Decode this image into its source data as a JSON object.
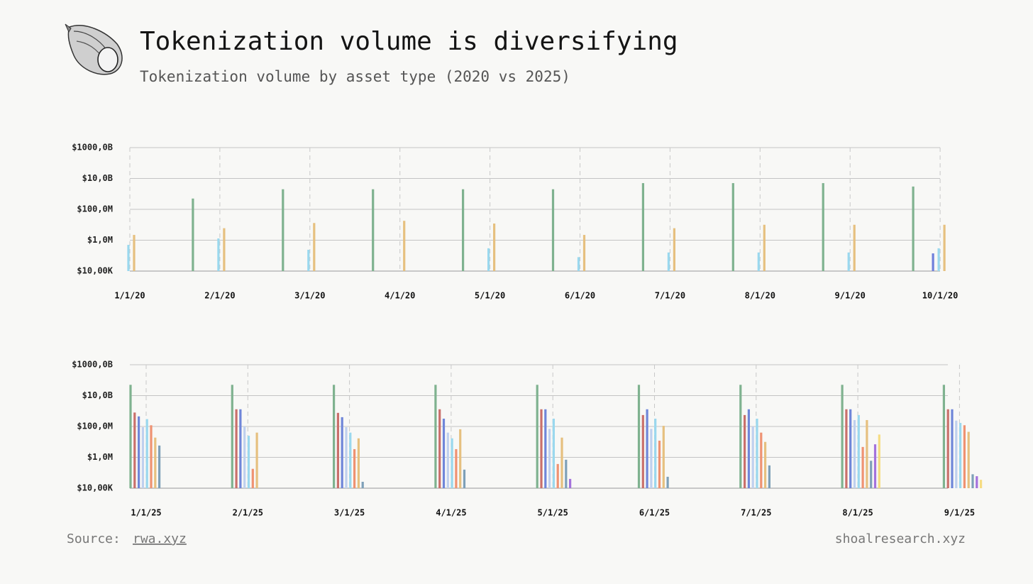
{
  "header": {
    "title": "Tokenization volume is diversifying",
    "subtitle": "Tokenization volume by asset type (2020 vs 2025)"
  },
  "chart_data": [
    {
      "type": "bar",
      "log_scale": true,
      "grid": true,
      "ylim": [
        10000,
        1000000000000
      ],
      "yticks": [
        {
          "value": 10000,
          "label": "$10,00K"
        },
        {
          "value": 1000000,
          "label": "$1,0M"
        },
        {
          "value": 100000000,
          "label": "$100,0M"
        },
        {
          "value": 10000000000,
          "label": "$10,0B"
        },
        {
          "value": 1000000000000,
          "label": "$1000,0B"
        }
      ],
      "categories": [
        "1/1/20",
        "2/1/20",
        "3/1/20",
        "4/1/20",
        "5/1/20",
        "6/1/20",
        "7/1/20",
        "8/1/20",
        "9/1/20",
        "10/1/20"
      ],
      "series": [
        {
          "color": "#7fb28f",
          "values": [
            null,
            500000000,
            2000000000,
            2000000000,
            2000000000,
            2000000000,
            5000000000,
            5000000000,
            5000000000,
            3000000000
          ]
        },
        {
          "color": "#6f7fdb",
          "values": [
            null,
            null,
            null,
            null,
            null,
            null,
            null,
            null,
            null,
            140000
          ]
        },
        {
          "color": "#9ad8ee",
          "values": [
            500000,
            1300000,
            240000,
            null,
            300000,
            80000,
            160000,
            160000,
            160000,
            300000
          ]
        },
        {
          "color": "#e6c07f",
          "values": [
            2200000,
            6000000,
            13000000,
            18000000,
            12000000,
            2200000,
            6000000,
            10000000,
            10000000,
            10000000
          ]
        }
      ]
    },
    {
      "type": "bar",
      "log_scale": true,
      "grid": true,
      "ylim": [
        10000,
        1000000000000
      ],
      "yticks": [
        {
          "value": 10000,
          "label": "$10,00K"
        },
        {
          "value": 1000000,
          "label": "$1,0M"
        },
        {
          "value": 100000000,
          "label": "$100,0M"
        },
        {
          "value": 10000000000,
          "label": "$10,0B"
        },
        {
          "value": 1000000000000,
          "label": "$1000,0B"
        }
      ],
      "categories": [
        "1/1/25",
        "2/1/25",
        "3/1/25",
        "4/1/25",
        "5/1/25",
        "6/1/25",
        "7/1/25",
        "8/1/25",
        "9/1/25"
      ],
      "series": [
        {
          "color": "#7fb28f",
          "values": [
            50000000000,
            50000000000,
            50000000000,
            50000000000,
            50000000000,
            50000000000,
            50000000000,
            50000000000,
            50000000000
          ]
        },
        {
          "color": "#c9706b",
          "values": [
            800000000,
            1300000000,
            760000000,
            1300000000,
            1300000000,
            550000000,
            550000000,
            1300000000,
            1300000000
          ]
        },
        {
          "color": "#6f86d9",
          "values": [
            450000000,
            1300000000,
            400000000,
            320000000,
            1300000000,
            1300000000,
            1300000000,
            1300000000,
            1300000000
          ]
        },
        {
          "color": "#bfd0ee",
          "values": [
            90000000,
            100000000,
            90000000,
            40000000,
            70000000,
            70000000,
            100000000,
            260000000,
            240000000
          ]
        },
        {
          "color": "#9ad8ee",
          "values": [
            300000000,
            25000000,
            40000000,
            17000000,
            320000000,
            320000000,
            320000000,
            550000000,
            170000000
          ]
        },
        {
          "color": "#ef9272",
          "values": [
            120000000,
            180000,
            3400000,
            3400000,
            370000,
            12000000,
            40000000,
            4700000,
            120000000
          ]
        },
        {
          "color": "#e6c07f",
          "values": [
            19000000,
            40000000,
            17000000,
            66000000,
            19000000,
            110000000,
            10000000,
            260000000,
            45000000
          ]
        },
        {
          "color": "#7ea0b8",
          "values": [
            5800000,
            null,
            26000,
            160000,
            700000,
            55000,
            300000,
            600000,
            80000
          ]
        },
        {
          "color": "#a472dc",
          "values": [
            null,
            null,
            null,
            null,
            40000,
            null,
            null,
            7000000,
            60000
          ]
        },
        {
          "color": "#f6dc82",
          "values": [
            null,
            null,
            null,
            null,
            null,
            null,
            null,
            30000000,
            35000
          ]
        }
      ]
    }
  ],
  "footer": {
    "source_label": "Source:",
    "source_link": "rwa.xyz",
    "credit": "shoalresearch.xyz"
  }
}
